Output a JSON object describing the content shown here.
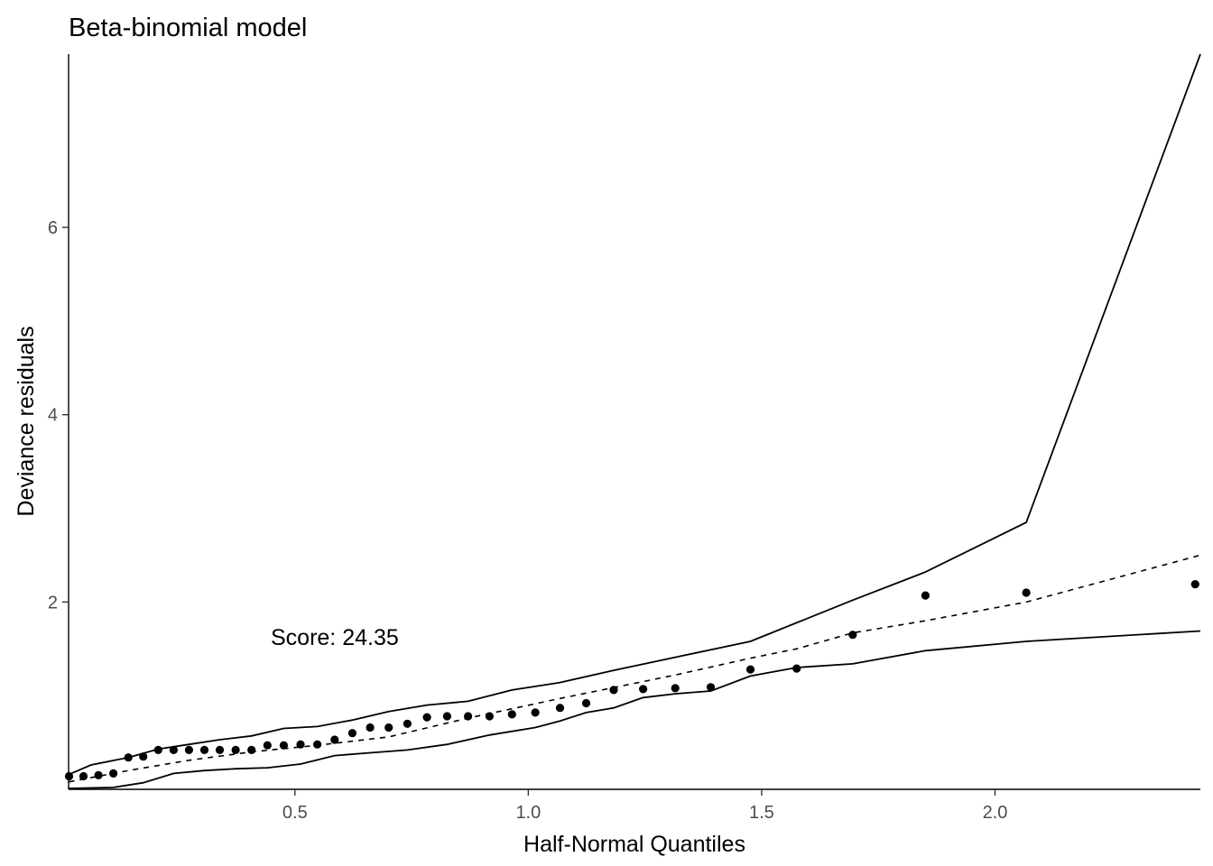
{
  "chart_data": {
    "type": "scatter",
    "title": "Beta-binomial model",
    "xlabel": "Half-Normal Quantiles",
    "ylabel": "Deviance residuals",
    "xlim": [
      0.015,
      2.44
    ],
    "ylim": [
      0,
      7.85
    ],
    "x_ticks": [
      0.5,
      1.0,
      1.5,
      2.0
    ],
    "x_tick_labels": [
      "0.5",
      "1.0",
      "1.5",
      "2.0"
    ],
    "y_ticks": [
      2,
      4,
      6
    ],
    "y_tick_labels": [
      "2",
      "4",
      "6"
    ],
    "grid": false,
    "annotation": "Score: 24.35",
    "points": {
      "x": [
        0.016,
        0.047,
        0.079,
        0.111,
        0.143,
        0.175,
        0.207,
        0.24,
        0.273,
        0.306,
        0.339,
        0.373,
        0.407,
        0.441,
        0.476,
        0.512,
        0.548,
        0.585,
        0.623,
        0.661,
        0.701,
        0.741,
        0.783,
        0.826,
        0.871,
        0.917,
        0.965,
        1.015,
        1.068,
        1.124,
        1.183,
        1.246,
        1.315,
        1.391,
        1.476,
        1.575,
        1.695,
        1.851,
        2.067,
        2.429
      ],
      "y": [
        0.14,
        0.14,
        0.15,
        0.17,
        0.34,
        0.35,
        0.42,
        0.42,
        0.42,
        0.42,
        0.42,
        0.42,
        0.42,
        0.47,
        0.47,
        0.48,
        0.48,
        0.53,
        0.6,
        0.66,
        0.66,
        0.7,
        0.77,
        0.78,
        0.78,
        0.78,
        0.8,
        0.82,
        0.87,
        0.92,
        1.06,
        1.07,
        1.08,
        1.09,
        1.28,
        1.29,
        1.65,
        2.07,
        2.1,
        2.19
      ]
    },
    "series": [
      {
        "style": "solid",
        "x": [
          0.016,
          0.063,
          0.143,
          0.207,
          0.273,
          0.339,
          0.407,
          0.476,
          0.548,
          0.623,
          0.701,
          0.783,
          0.871,
          0.965,
          1.068,
          1.183,
          1.315,
          1.476,
          1.695,
          1.851,
          2.067,
          2.44
        ],
        "y": [
          0.16,
          0.26,
          0.34,
          0.43,
          0.48,
          0.53,
          0.57,
          0.65,
          0.67,
          0.74,
          0.83,
          0.9,
          0.94,
          1.06,
          1.14,
          1.27,
          1.41,
          1.58,
          2.02,
          2.32,
          2.85,
          7.85
        ]
      },
      {
        "style": "dashed",
        "x": [
          0.016,
          0.143,
          0.273,
          0.407,
          0.548,
          0.701,
          0.871,
          1.068,
          1.315,
          1.476,
          1.575,
          1.695,
          1.851,
          2.067,
          2.44
        ],
        "y": [
          0.08,
          0.2,
          0.31,
          0.4,
          0.47,
          0.56,
          0.76,
          0.97,
          1.22,
          1.4,
          1.5,
          1.67,
          1.8,
          2.0,
          2.5
        ]
      },
      {
        "style": "solid",
        "x": [
          0.016,
          0.111,
          0.175,
          0.24,
          0.306,
          0.373,
          0.441,
          0.512,
          0.585,
          0.661,
          0.741,
          0.826,
          0.917,
          1.015,
          1.068,
          1.124,
          1.183,
          1.246,
          1.315,
          1.391,
          1.476,
          1.575,
          1.695,
          1.851,
          2.067,
          2.44
        ],
        "y": [
          0.01,
          0.02,
          0.07,
          0.17,
          0.2,
          0.22,
          0.23,
          0.27,
          0.36,
          0.39,
          0.42,
          0.48,
          0.58,
          0.66,
          0.73,
          0.82,
          0.87,
          0.98,
          1.02,
          1.05,
          1.21,
          1.3,
          1.34,
          1.48,
          1.58,
          1.69
        ]
      }
    ]
  }
}
